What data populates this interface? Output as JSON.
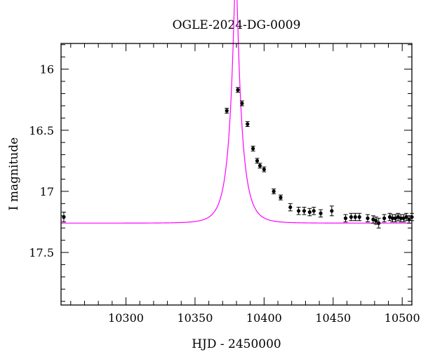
{
  "chart_data": {
    "type": "scatter",
    "title": "OGLE-2024-DG-0009",
    "xlabel": "HJD - 2450000",
    "ylabel": "I magnitude",
    "xlim": [
      10253,
      10507
    ],
    "ylim": [
      17.93,
      15.79
    ],
    "y_inverted": true,
    "grid": false,
    "x_ticks": [
      10300,
      10350,
      10400,
      10450,
      10500
    ],
    "x_tick_labels": [
      "10300",
      "10350",
      "10400",
      "10450",
      "10500"
    ],
    "y_ticks": [
      16,
      16.5,
      17,
      17.5
    ],
    "y_tick_labels": [
      "16",
      "16.5",
      "17",
      "17.5"
    ],
    "series": [
      {
        "kind": "points",
        "color": "#000000",
        "x": [
          10255,
          10373,
          10381,
          10384,
          10388,
          10392,
          10395,
          10397,
          10400,
          10407,
          10412,
          10419,
          10425,
          10429,
          10433,
          10436,
          10441,
          10449,
          10459,
          10463,
          10466,
          10469,
          10475,
          10479,
          10481,
          10483,
          10487,
          10491,
          10493,
          10495,
          10497,
          10499,
          10501,
          10503,
          10505,
          10507
        ],
        "y": [
          17.21,
          16.34,
          16.17,
          16.28,
          16.45,
          16.65,
          16.75,
          16.79,
          16.82,
          17.0,
          17.05,
          17.13,
          17.16,
          17.16,
          17.17,
          17.16,
          17.18,
          17.16,
          17.22,
          17.21,
          17.21,
          17.21,
          17.22,
          17.23,
          17.24,
          17.26,
          17.22,
          17.21,
          17.22,
          17.22,
          17.21,
          17.22,
          17.22,
          17.21,
          17.23,
          17.21
        ],
        "err": [
          0.04,
          0.02,
          0.02,
          0.02,
          0.02,
          0.02,
          0.02,
          0.02,
          0.02,
          0.02,
          0.02,
          0.03,
          0.03,
          0.03,
          0.03,
          0.03,
          0.03,
          0.04,
          0.03,
          0.03,
          0.03,
          0.03,
          0.03,
          0.03,
          0.03,
          0.04,
          0.03,
          0.03,
          0.03,
          0.03,
          0.03,
          0.03,
          0.03,
          0.03,
          0.03,
          0.03
        ]
      },
      {
        "kind": "model",
        "color": "#ff00ff",
        "t0": 10379.5,
        "tE": 9.0,
        "u0": 0.155,
        "baseline": 17.26,
        "fs": 0.98
      }
    ]
  }
}
